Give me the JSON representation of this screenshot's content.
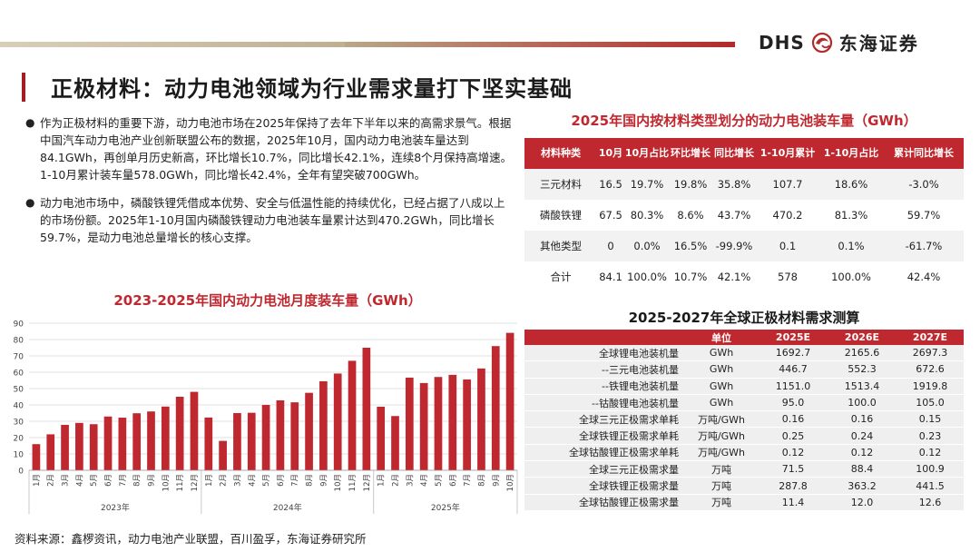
{
  "header": {
    "logo_dhs": "DHS",
    "logo_cn": "东海证券",
    "title": "正极材料：动力电池领域为行业需求量打下坚实基础"
  },
  "bullets": [
    "作为正极材料的重要下游，动力电池市场在2025年保持了去年下半年以来的高需求景气。根据中国汽车动力电池产业创新联盟公布的数据，2025年10月，国内动力电池装车量达到84.1GWh，再创单月历史新高，环比增长10.7%，同比增长42.1%，连续8个月保持高增速。1-10月累计装车量578.0GWh，同比增长42.4%，全年有望突破700GWh。",
    "动力电池市场中，磷酸铁锂凭借成本优势、安全与低温性能的持续优化，已经占据了八成以上的市场份额。2025年1-10月国内磷酸铁锂动力电池装车量累计达到470.2GWh，同比增长59.7%，是动力电池总量增长的核心支撑。"
  ],
  "source": "资料来源：鑫椤资讯，动力电池产业联盟，百川盈孚，东海证券研究所",
  "chart_data": {
    "type": "bar",
    "title": "2023-2025年国内动力电池月度装车量（GWh）",
    "categories": [
      "1月",
      "2月",
      "3月",
      "4月",
      "5月",
      "6月",
      "7月",
      "8月",
      "9月",
      "10月",
      "11月",
      "12月",
      "1月",
      "2月",
      "3月",
      "4月",
      "5月",
      "6月",
      "7月",
      "8月",
      "9月",
      "10月",
      "11月",
      "12月",
      "1月",
      "2月",
      "3月",
      "4月",
      "5月",
      "6月",
      "7月",
      "8月",
      "9月",
      "10月"
    ],
    "year_labels": [
      "2023年",
      "2024年",
      "2025年"
    ],
    "values": [
      16,
      22,
      27.8,
      29,
      28.2,
      32.9,
      32.2,
      34.9,
      36,
      39,
      45,
      48,
      32.3,
      18,
      35,
      35.2,
      40,
      42.8,
      41.6,
      47.4,
      54.5,
      59.2,
      67,
      75,
      38.9,
      33.2,
      56.7,
      53.4,
      57.1,
      58.4,
      55.6,
      62.3,
      76,
      84.1
    ],
    "ylim": [
      0,
      90
    ],
    "yticks": [
      "0",
      "10",
      "20",
      "30",
      "40",
      "50",
      "60",
      "70",
      "80",
      "90"
    ],
    "bar_color": "#c0282f",
    "grid": true
  },
  "table1": {
    "title": "2025年国内按材料类型划分的动力电池装车量（GWh）",
    "headers": [
      "材料种类",
      "10月",
      "10月占比",
      "环比增长",
      "同比增长",
      "1-10月累计",
      "1-10月占比",
      "累计同比增长"
    ],
    "rows": [
      [
        "三元材料",
        "16.5",
        "19.7%",
        "19.8%",
        "35.8%",
        "107.7",
        "18.6%",
        "-3.0%"
      ],
      [
        "磷酸铁锂",
        "67.5",
        "80.3%",
        "8.6%",
        "43.7%",
        "470.2",
        "81.3%",
        "59.7%"
      ],
      [
        "其他类型",
        "0",
        "0.0%",
        "16.5%",
        "-99.9%",
        "0.1",
        "0.1%",
        "-61.7%"
      ],
      [
        "合计",
        "84.1",
        "100.0%",
        "10.7%",
        "42.1%",
        "578",
        "100.0%",
        "42.4%"
      ]
    ]
  },
  "table2": {
    "title": "2025-2027年全球正极材料需求测算",
    "headers": [
      "",
      "单位",
      "2025E",
      "2026E",
      "2027E"
    ],
    "rows": [
      [
        "全球锂电池装机量",
        "GWh",
        "1692.7",
        "2165.6",
        "2697.3"
      ],
      [
        "--三元电池装机量",
        "GWh",
        "446.7",
        "552.3",
        "672.6"
      ],
      [
        "--铁锂电池装机量",
        "GWh",
        "1151.0",
        "1513.4",
        "1919.8"
      ],
      [
        "--钴酸锂电池装机量",
        "GWh",
        "95.0",
        "100.0",
        "105.0"
      ],
      [
        "全球三元正极需求单耗",
        "万吨/GWh",
        "0.16",
        "0.16",
        "0.15"
      ],
      [
        "全球铁锂正极需求单耗",
        "万吨/GWh",
        "0.25",
        "0.24",
        "0.23"
      ],
      [
        "全球钴酸锂正极需求单耗",
        "万吨/GWh",
        "0.12",
        "0.12",
        "0.12"
      ],
      [
        "全球三元正极需求量",
        "万吨",
        "71.5",
        "88.4",
        "100.9"
      ],
      [
        "全球铁锂正极需求量",
        "万吨",
        "287.8",
        "363.2",
        "441.5"
      ],
      [
        "全球钴酸锂正极需求量",
        "万吨",
        "11.4",
        "12.0",
        "12.6"
      ]
    ]
  }
}
